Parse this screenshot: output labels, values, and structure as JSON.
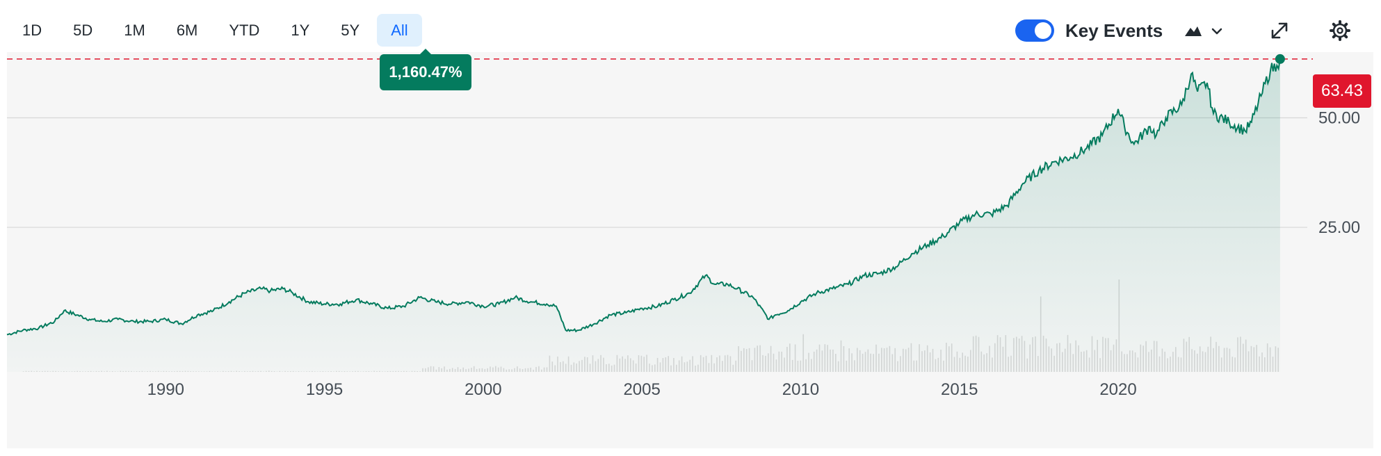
{
  "toolbar": {
    "ranges": [
      "1D",
      "5D",
      "1M",
      "6M",
      "YTD",
      "1Y",
      "5Y",
      "All"
    ],
    "active_range": "All",
    "key_events_label": "Key Events",
    "key_events_on": true
  },
  "icons": {
    "chart_type": "mountain-chart-icon",
    "chevron": "chevron-down-icon",
    "expand": "expand-icon",
    "settings": "gear-icon"
  },
  "colors": {
    "line": "#047b5e",
    "accent": "#1a64f0",
    "price_tag": "#e0162d",
    "badge": "#047b5e"
  },
  "badge_text": "1,160.47%",
  "chart_data": {
    "type": "area",
    "title": "",
    "xlabel": "",
    "ylabel": "",
    "x_ticks": [
      "1990",
      "1995",
      "2000",
      "2005",
      "2010",
      "2015",
      "2020"
    ],
    "y_ticks": [
      "25.00",
      "50.00"
    ],
    "y_tick_values": [
      25,
      50
    ],
    "ylim": [
      -8,
      65
    ],
    "xlim": [
      1985.0,
      2025.3
    ],
    "grid": "horizontal",
    "current_price": "63.43",
    "current_value": 63.43,
    "series": [
      {
        "x": [
          1985.0,
          1985.5,
          1986.0,
          1986.5,
          1986.8,
          1987.2,
          1987.6,
          1988.0,
          1988.5,
          1989.0,
          1989.5,
          1990.0,
          1990.5,
          1991.0,
          1991.5,
          1992.0,
          1992.5,
          1993.0,
          1993.3,
          1993.7,
          1994.0,
          1994.5,
          1995.0,
          1995.5,
          1996.0,
          1996.5,
          1997.0,
          1997.5,
          1998.0,
          1998.5,
          1999.0,
          1999.5,
          2000.0,
          2000.5,
          2001.0,
          2001.5,
          2002.0,
          2002.3,
          2002.6,
          2003.0,
          2003.5,
          2004.0,
          2004.5,
          2005.0,
          2005.5,
          2006.0,
          2006.5,
          2007.0,
          2007.3,
          2007.7,
          2008.0,
          2008.5,
          2009.0,
          2009.2,
          2009.6,
          2010.0,
          2010.5,
          2011.0,
          2011.5,
          2012.0,
          2012.5,
          2013.0,
          2013.5,
          2014.0,
          2014.5,
          2015.0,
          2015.5,
          2016.0,
          2016.5,
          2017.0,
          2017.5,
          2018.0,
          2018.5,
          2019.0,
          2019.5,
          2020.0,
          2020.2,
          2020.5,
          2021.0,
          2021.2,
          2021.5,
          2022.0,
          2022.3,
          2022.5,
          2022.8,
          2023.0,
          2023.5,
          2024.0,
          2024.2,
          2024.5,
          2024.8,
          2025.0,
          2025.1
        ],
        "values": [
          0.5,
          1.5,
          2.0,
          3.5,
          6.0,
          5.0,
          4.0,
          3.5,
          4.0,
          3.5,
          3.5,
          4.0,
          3.0,
          5.0,
          6.0,
          8.0,
          10.0,
          11.0,
          10.5,
          11.0,
          10.0,
          8.0,
          7.5,
          7.5,
          8.5,
          7.5,
          6.5,
          7.0,
          9.0,
          8.0,
          7.5,
          8.0,
          7.0,
          7.5,
          9.0,
          8.0,
          7.5,
          7.0,
          1.5,
          1.5,
          3.0,
          5.0,
          5.5,
          6.5,
          7.0,
          8.5,
          10.0,
          14.0,
          12.0,
          12.0,
          11.0,
          9.0,
          4.0,
          5.0,
          6.0,
          8.0,
          10.0,
          11.0,
          12.0,
          14.0,
          14.5,
          16.0,
          19.0,
          21.0,
          23.0,
          26.0,
          28.0,
          28.0,
          30.0,
          35.0,
          38.0,
          40.0,
          41.0,
          43.0,
          46.0,
          52.0,
          48.0,
          44.0,
          48.0,
          46.0,
          50.0,
          53.0,
          60.0,
          56.0,
          58.0,
          51.0,
          49.0,
          47.0,
          49.0,
          55.0,
          61.0,
          62.0,
          63.43
        ]
      }
    ],
    "volume_note": "volume bars"
  }
}
